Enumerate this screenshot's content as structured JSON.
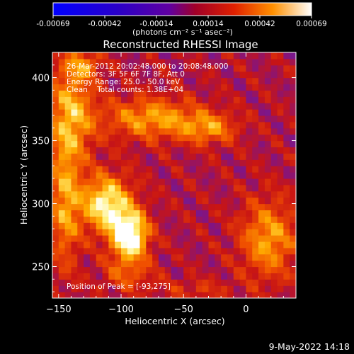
{
  "colorbar": {
    "ticks": [
      "-0.00069",
      "-0.00042",
      "-0.00014",
      "0.00014",
      "0.00042",
      "0.00069"
    ],
    "unit_label": "(photons cm⁻² s⁻¹ asec⁻²)"
  },
  "chart_data": {
    "type": "heatmap",
    "title": "Reconstructed RHESSI Image",
    "xlabel": "Heliocentric X (arcsec)",
    "ylabel": "Heliocentric Y (arcsec)",
    "xlim": [
      -155,
      40
    ],
    "ylim": [
      225,
      420
    ],
    "xticks": [
      -150,
      -100,
      -50,
      0
    ],
    "yticks": [
      250,
      300,
      350,
      400
    ],
    "xtick_labels": [
      "−150",
      "−100",
      "−50",
      "0"
    ],
    "ytick_labels": [
      "250",
      "300",
      "350",
      "400"
    ],
    "value_range": [
      -0.00069,
      0.00069
    ],
    "annotations": [
      "26-Mar-2012 20:02:48.000 to 20:08:48.000",
      "Detectors: 3F 5F 6F 7F 8F, Att 0",
      "Energy Range: 25.0 - 50.0 keV",
      "Clean    Total counts: 1.38E+04"
    ],
    "peak_label": "Position of Peak = [-93,275]",
    "peak": [
      -93,
      275
    ],
    "hot_regions": [
      {
        "x": -93,
        "y": 275,
        "sx": 14,
        "sy": 18,
        "amp": 0.0007
      },
      {
        "x": -112,
        "y": 300,
        "sx": 20,
        "sy": 22,
        "amp": 0.00055
      },
      {
        "x": -140,
        "y": 372,
        "sx": 18,
        "sy": 40,
        "amp": 0.00038
      },
      {
        "x": -145,
        "y": 300,
        "sx": 12,
        "sy": 50,
        "amp": 0.00034
      },
      {
        "x": -75,
        "y": 368,
        "sx": 38,
        "sy": 16,
        "amp": 0.00036
      },
      {
        "x": -30,
        "y": 360,
        "sx": 22,
        "sy": 12,
        "amp": 0.0003
      },
      {
        "x": 18,
        "y": 272,
        "sx": 22,
        "sy": 30,
        "amp": 0.00036
      },
      {
        "x": -130,
        "y": 410,
        "sx": 14,
        "sy": 10,
        "amp": 0.00025
      },
      {
        "x": -95,
        "y": 245,
        "sx": 20,
        "sy": 14,
        "amp": 0.0002
      },
      {
        "x": -40,
        "y": 232,
        "sx": 30,
        "sy": 8,
        "amp": 0.00012
      }
    ]
  },
  "footer": {
    "date": "9-May-2022 14:18"
  }
}
